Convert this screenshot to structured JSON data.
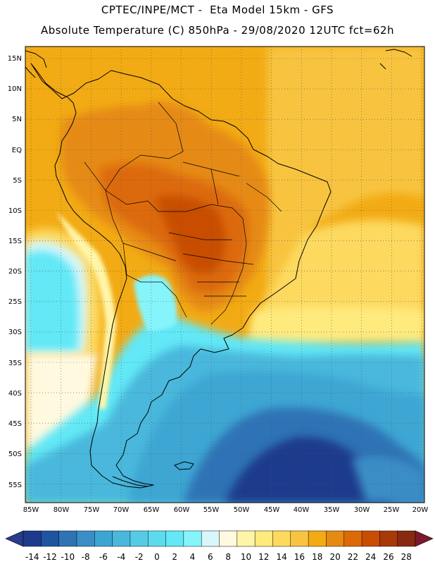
{
  "chart_data": {
    "type": "heatmap",
    "title": "CPTEC/INPE/MCT -  Eta Model 15km - GFS",
    "subtitle": "Absolute Temperature (C) 850hPa - 29/08/2020 12UTC fct=62h",
    "variable": "Absolute Temperature (C) 850hPa",
    "x_ticks": [
      "85W",
      "80W",
      "75W",
      "70W",
      "65W",
      "60W",
      "55W",
      "50W",
      "45W",
      "40W",
      "35W",
      "30W",
      "25W",
      "20W"
    ],
    "y_ticks": [
      "15N",
      "10N",
      "5N",
      "EQ",
      "5S",
      "10S",
      "15S",
      "20S",
      "25S",
      "30S",
      "35S",
      "40S",
      "45S",
      "50S",
      "55S"
    ],
    "colorbar": {
      "labels": [
        "-14",
        "-12",
        "-10",
        "-8",
        "-6",
        "-4",
        "-2",
        "0",
        "2",
        "4",
        "6",
        "8",
        "10",
        "12",
        "14",
        "16",
        "18",
        "20",
        "22",
        "24",
        "26",
        "28"
      ],
      "colors": [
        "#1e3a8c",
        "#1f55a0",
        "#2f73b5",
        "#3a8dc6",
        "#3ca6d3",
        "#4ab8dc",
        "#55cbe6",
        "#5ddbee",
        "#62e8f6",
        "#86f5fb",
        "#d9f6fa",
        "#fff9df",
        "#fff5a8",
        "#ffea7e",
        "#fdd95e",
        "#f8c440",
        "#f2ab14",
        "#e68a12",
        "#dc6a08",
        "#c84e04",
        "#a83a08",
        "#872a10"
      ],
      "under_color": "#283c8c",
      "over_color": "#7a1a2c"
    }
  }
}
